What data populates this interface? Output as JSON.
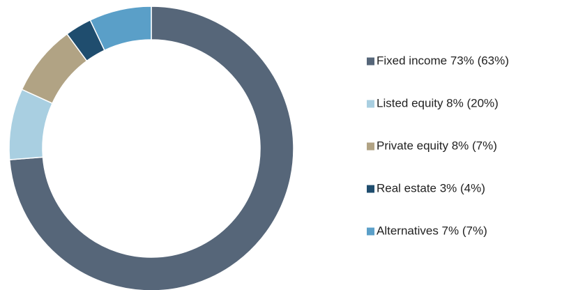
{
  "chart_data": {
    "type": "donut",
    "categories": [
      "Fixed income 73% (63%)",
      "Listed equity 8% (20%)",
      "Private equity 8% (7%)",
      "Real estate 3% (4%)",
      "Alternatives 7% (7%)"
    ],
    "values": [
      73,
      8,
      8,
      3,
      7
    ],
    "colors": [
      "#566679",
      "#a9cfe1",
      "#b1a384",
      "#1f4d6e",
      "#5a9fc8"
    ],
    "legend": "right"
  }
}
